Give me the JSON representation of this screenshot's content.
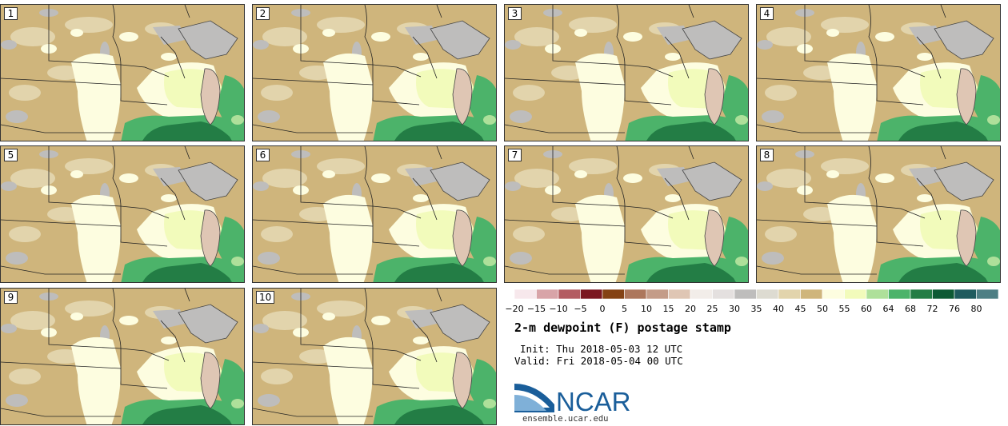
{
  "panels": [
    {
      "label": "1"
    },
    {
      "label": "2"
    },
    {
      "label": "3"
    },
    {
      "label": "4"
    },
    {
      "label": "5"
    },
    {
      "label": "6"
    },
    {
      "label": "7"
    },
    {
      "label": "8"
    },
    {
      "label": "9"
    },
    {
      "label": "10"
    }
  ],
  "colorbar": {
    "ticks": [
      "−20",
      "−15",
      "−10",
      "−5",
      "0",
      "5",
      "10",
      "15",
      "20",
      "25",
      "30",
      "35",
      "40",
      "45",
      "50",
      "55",
      "60",
      "64",
      "68",
      "72",
      "76",
      "80"
    ],
    "colors": [
      "#f7e8ec",
      "#d8a4a8",
      "#b35c62",
      "#7b1820",
      "#844214",
      "#ad775c",
      "#c49c88",
      "#dfc6b4",
      "#f2ede9",
      "#e4e0df",
      "#bebdbc",
      "#dddbd1",
      "#e2d4ac",
      "#cfb57c",
      "#fdfde0",
      "#f2fbbb",
      "#aee09a",
      "#4cb36a",
      "#237d45",
      "#0d5a34",
      "#1f5b5e",
      "#4e7f84"
    ]
  },
  "title": "2-m dewpoint (F) postage stamp",
  "init": "Init: Thu 2018-05-03 12 UTC",
  "valid": "Valid: Fri 2018-05-04 00 UTC",
  "logo": {
    "name": "NCAR",
    "url": "ensemble.ucar.edu"
  }
}
